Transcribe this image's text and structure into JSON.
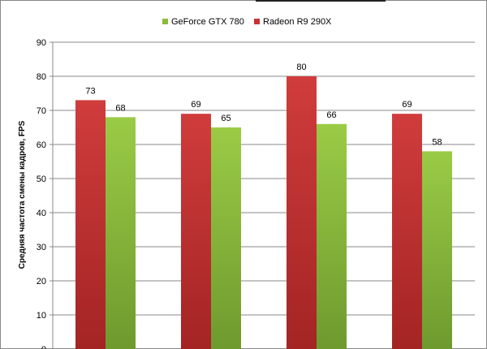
{
  "chart_data": {
    "type": "bar",
    "categories": [
      "",
      "",
      "",
      ""
    ],
    "series": [
      {
        "name": "GeForce GTX 780",
        "values": [
          68,
          65,
          66,
          58
        ],
        "color": "#8bbb3c"
      },
      {
        "name": "Radeon R9 290X",
        "values": [
          73,
          69,
          80,
          69
        ],
        "color": "#c83232"
      }
    ],
    "bar_order": [
      "Radeon R9 290X",
      "GeForce GTX 780"
    ],
    "title": "",
    "ylabel": "Средняя частота смены кадров, FPS",
    "xlabel": "",
    "ylim": [
      0,
      90
    ],
    "yticks": [
      "0",
      "10",
      "20",
      "30",
      "40",
      "50",
      "60",
      "70",
      "80",
      "90"
    ],
    "grid": true,
    "data_labels": true,
    "legend_position": "top"
  }
}
